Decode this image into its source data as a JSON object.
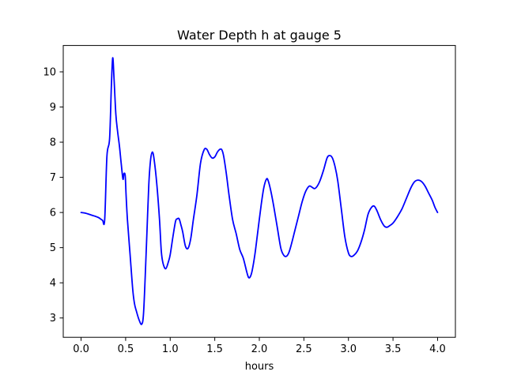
{
  "chart_data": {
    "type": "line",
    "title": "Water Depth h at gauge 5",
    "xlabel": "hours",
    "ylabel": "",
    "xlim": [
      -0.2,
      4.2
    ],
    "ylim": [
      2.45,
      10.75
    ],
    "xticks": [
      0.0,
      0.5,
      1.0,
      1.5,
      2.0,
      2.5,
      3.0,
      3.5,
      4.0
    ],
    "xtick_labels": [
      "0.0",
      "0.5",
      "1.0",
      "1.5",
      "2.0",
      "2.5",
      "3.0",
      "3.5",
      "4.0"
    ],
    "yticks": [
      3,
      4,
      5,
      6,
      7,
      8,
      9,
      10
    ],
    "ytick_labels": [
      "3",
      "4",
      "5",
      "6",
      "7",
      "8",
      "9",
      "10"
    ],
    "grid": false,
    "legend": "none",
    "colors": {
      "line": "#0000ff",
      "axes": "#000000",
      "background": "#ffffff"
    },
    "series": [
      {
        "x": [
          0.0,
          0.05,
          0.1,
          0.15,
          0.2,
          0.24,
          0.265,
          0.29,
          0.32,
          0.34,
          0.355,
          0.37,
          0.39,
          0.41,
          0.43,
          0.45,
          0.47,
          0.48,
          0.495,
          0.505,
          0.52,
          0.55,
          0.58,
          0.6,
          0.62,
          0.65,
          0.68,
          0.7,
          0.72,
          0.74,
          0.76,
          0.78,
          0.8,
          0.82,
          0.85,
          0.88,
          0.9,
          0.92,
          0.95,
          0.98,
          1.0,
          1.03,
          1.06,
          1.08,
          1.1,
          1.12,
          1.14,
          1.17,
          1.2,
          1.23,
          1.26,
          1.3,
          1.34,
          1.38,
          1.41,
          1.44,
          1.47,
          1.5,
          1.53,
          1.56,
          1.58,
          1.6,
          1.63,
          1.66,
          1.7,
          1.74,
          1.78,
          1.82,
          1.86,
          1.88,
          1.9,
          1.92,
          1.95,
          1.98,
          2.02,
          2.05,
          2.08,
          2.1,
          2.13,
          2.16,
          2.2,
          2.24,
          2.27,
          2.3,
          2.33,
          2.36,
          2.4,
          2.44,
          2.48,
          2.52,
          2.56,
          2.59,
          2.62,
          2.65,
          2.68,
          2.72,
          2.76,
          2.79,
          2.82,
          2.85,
          2.88,
          2.92,
          2.96,
          3.0,
          3.03,
          3.06,
          3.1,
          3.14,
          3.18,
          3.22,
          3.26,
          3.29,
          3.32,
          3.36,
          3.4,
          3.43,
          3.46,
          3.5,
          3.55,
          3.6,
          3.65,
          3.7,
          3.74,
          3.78,
          3.82,
          3.86,
          3.9,
          3.94,
          3.97,
          4.0
        ],
        "y": [
          6.0,
          5.98,
          5.94,
          5.9,
          5.85,
          5.78,
          5.8,
          7.6,
          8.1,
          9.6,
          10.4,
          9.8,
          8.8,
          8.3,
          7.9,
          7.4,
          6.95,
          7.1,
          7.05,
          6.5,
          5.8,
          4.8,
          3.8,
          3.4,
          3.2,
          2.95,
          2.82,
          3.1,
          4.2,
          5.5,
          6.8,
          7.5,
          7.72,
          7.5,
          6.8,
          5.8,
          4.9,
          4.55,
          4.4,
          4.6,
          4.8,
          5.3,
          5.75,
          5.82,
          5.82,
          5.65,
          5.45,
          5.05,
          4.98,
          5.25,
          5.8,
          6.5,
          7.4,
          7.78,
          7.8,
          7.65,
          7.55,
          7.58,
          7.72,
          7.8,
          7.78,
          7.6,
          7.1,
          6.5,
          5.8,
          5.4,
          4.95,
          4.7,
          4.3,
          4.15,
          4.18,
          4.35,
          4.8,
          5.4,
          6.2,
          6.7,
          6.95,
          6.9,
          6.6,
          6.2,
          5.6,
          5.0,
          4.8,
          4.75,
          4.85,
          5.1,
          5.5,
          5.9,
          6.3,
          6.6,
          6.75,
          6.72,
          6.68,
          6.75,
          6.9,
          7.2,
          7.55,
          7.62,
          7.55,
          7.3,
          6.9,
          6.1,
          5.3,
          4.85,
          4.75,
          4.78,
          4.9,
          5.15,
          5.5,
          5.95,
          6.15,
          6.18,
          6.05,
          5.8,
          5.62,
          5.58,
          5.62,
          5.7,
          5.88,
          6.1,
          6.4,
          6.7,
          6.87,
          6.92,
          6.88,
          6.75,
          6.55,
          6.35,
          6.15,
          6.0
        ]
      }
    ]
  }
}
